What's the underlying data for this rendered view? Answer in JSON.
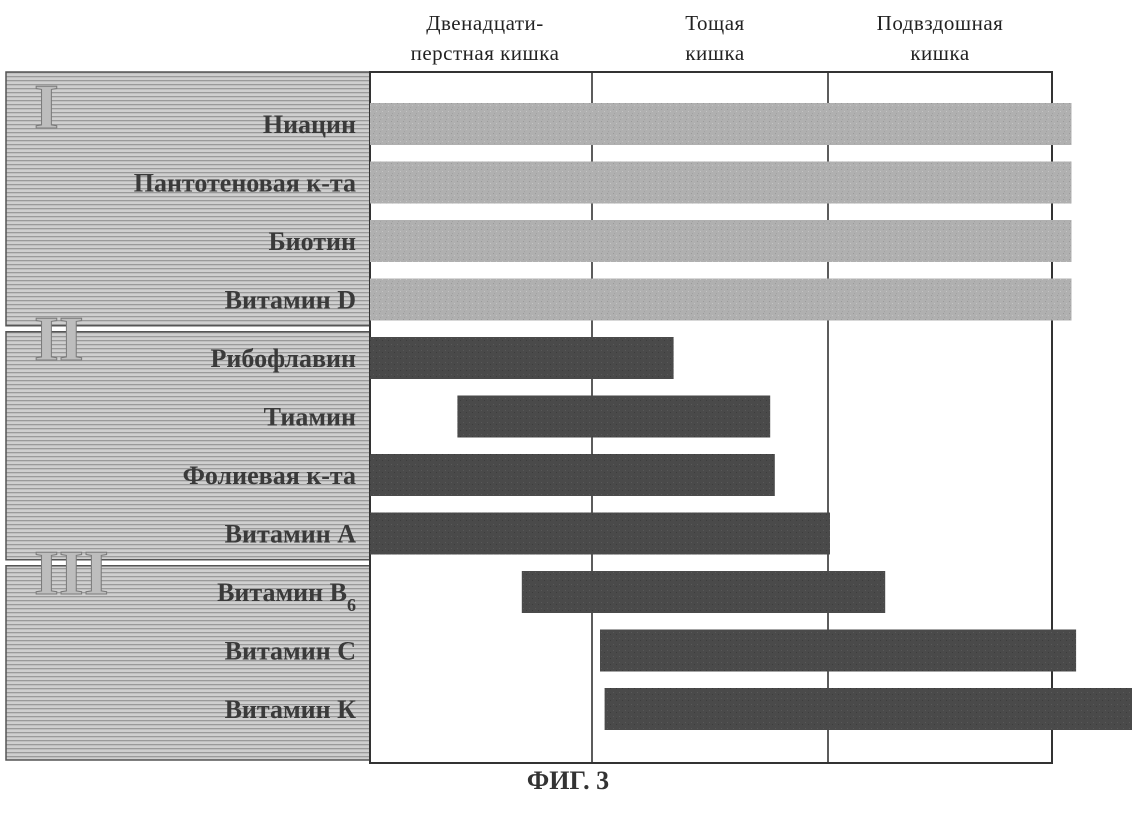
{
  "segments": [
    {
      "id": "duodenum",
      "lines": [
        "Двенадцати-",
        "перстная кишка"
      ]
    },
    {
      "id": "jejunum",
      "lines": [
        "Тощая",
        "кишка"
      ]
    },
    {
      "id": "ileum",
      "lines": [
        "Подвздошная",
        "кишка"
      ]
    }
  ],
  "groups": [
    {
      "label": "I",
      "rows": [
        0,
        3
      ]
    },
    {
      "label": "II",
      "rows": [
        4,
        7
      ]
    },
    {
      "label": "III",
      "rows": [
        8,
        10
      ]
    }
  ],
  "vitamins": [
    {
      "name": "Ниацин",
      "group": "I",
      "start": 0.0,
      "end": 3.05
    },
    {
      "name": "Пантотеновая  к-та",
      "group": "I",
      "start": 0.0,
      "end": 3.05
    },
    {
      "name": "Биотин",
      "group": "I",
      "start": 0.0,
      "end": 3.05
    },
    {
      "name": "Витамин D",
      "group": "I",
      "start": 0.0,
      "end": 3.05
    },
    {
      "name": "Рибофлавин",
      "group": "II",
      "start": 0.0,
      "end": 1.32
    },
    {
      "name": "Тиамин",
      "group": "II",
      "start": 0.38,
      "end": 1.74
    },
    {
      "name": "Фолиевая к-та",
      "group": "II",
      "start": 0.0,
      "end": 1.76
    },
    {
      "name": "Витамин А",
      "group": "II",
      "start": 0.0,
      "end": 2.0
    },
    {
      "name": "Витамин B",
      "subscript": "6",
      "group": "III",
      "start": 0.66,
      "end": 2.24
    },
    {
      "name": "Витамин С",
      "group": "III",
      "start": 1.0,
      "end": 3.07
    },
    {
      "name": "Витамин К",
      "group": "III",
      "start": 1.02,
      "end": 3.45
    }
  ],
  "colors": {
    "group_i_bar": "#aeaeae",
    "group_ii_iii_bar": "#4a4a4a",
    "label_panel": "#c8c8c8",
    "grid_line": "#333333"
  },
  "caption": "ФИГ. 3"
}
